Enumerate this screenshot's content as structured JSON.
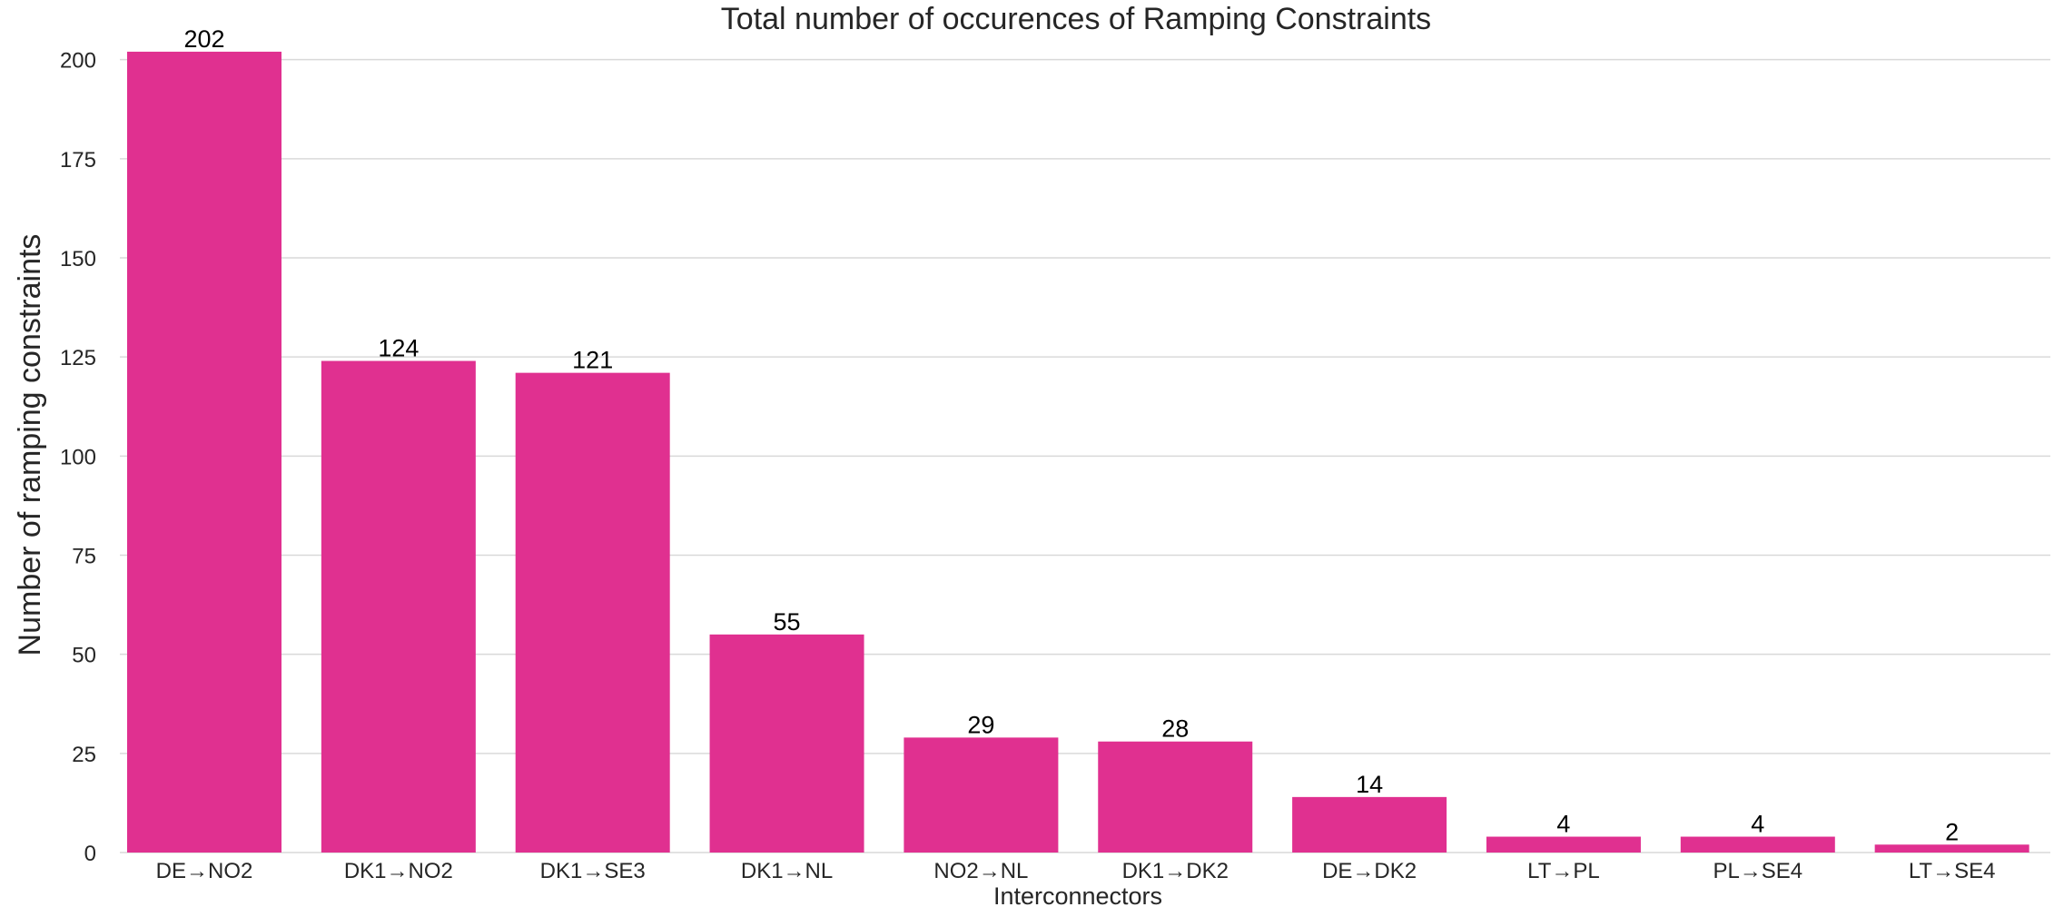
{
  "chart_data": {
    "type": "bar",
    "title": "Total number of occurences of Ramping Constraints",
    "xlabel": "Interconnectors",
    "ylabel": "Number of ramping constraints",
    "categories": [
      "DE→NO2",
      "DK1→NO2",
      "DK1→SE3",
      "DK1→NL",
      "NO2→NL",
      "DK1→DK2",
      "DE→DK2",
      "LT→PL",
      "PL→SE4",
      "LT→SE4"
    ],
    "values": [
      202,
      124,
      121,
      55,
      29,
      28,
      14,
      4,
      4,
      2
    ],
    "ylim": [
      0,
      210
    ],
    "yticks": [
      0,
      25,
      50,
      75,
      100,
      125,
      150,
      175,
      200
    ],
    "grid": "horizontal",
    "bar_color": "#e03090",
    "grid_color": "#d9d9d9"
  }
}
